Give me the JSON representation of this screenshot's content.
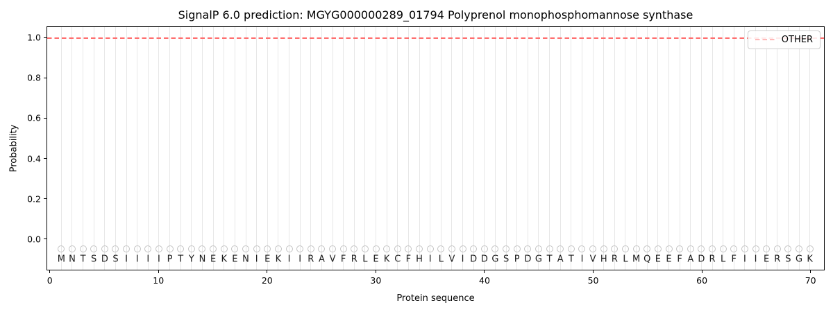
{
  "figure": {
    "title": "SignalP 6.0 prediction: MGYG000000289_01794 Polyprenol monophosphomannose synthase",
    "xlabel": "Protein sequence",
    "ylabel": "Probability",
    "legend_label": "OTHER"
  },
  "chart_data": {
    "type": "line",
    "title": "SignalP 6.0 prediction: MGYG000000289_01794 Polyprenol monophosphomannose synthase",
    "xlabel": "Protein sequence",
    "ylabel": "Probability",
    "xlim": [
      -0.3,
      71.3
    ],
    "ylim": [
      -0.155,
      1.055
    ],
    "x_ticks": [
      0,
      10,
      20,
      30,
      40,
      50,
      60,
      70
    ],
    "y_ticks": [
      0.0,
      0.2,
      0.4,
      0.6,
      0.8,
      1.0
    ],
    "grid": "vertical line at every residue position, no horizontal gridlines",
    "grid_color": "#e7e7e7",
    "legend_position": "upper right",
    "series": [
      {
        "name": "OTHER",
        "linestyle": "dashed",
        "color": "#ff6b6b",
        "y": 1.0,
        "x_start": 1,
        "x_end": 70,
        "note": "constant probability 1.0 for all 70 residues"
      }
    ],
    "sequence": "MNTSDSIIIIPTYNEKENIEKIIRAVFRLEKCFHILVIDDGSPDGTATIVHRLMQEEFADRLFIIERSGK",
    "sequence_length": 70,
    "residue_marker": {
      "shape": "circle",
      "outline_color": "#c4c4c4"
    },
    "residue_marker_y": -0.05,
    "residue_letter_y": -0.102,
    "axis_color": "#000000"
  }
}
